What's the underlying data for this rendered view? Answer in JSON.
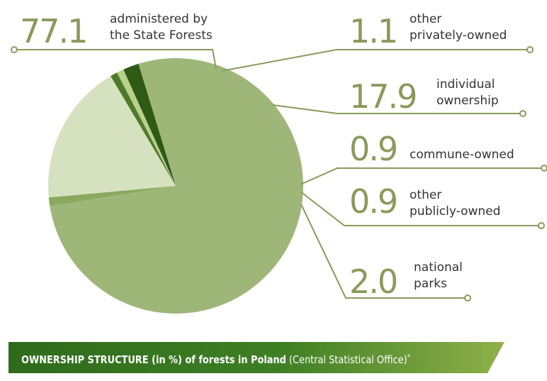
{
  "chart_data": {
    "type": "pie",
    "slices": [
      {
        "value": "77.1",
        "label_lines": [
          "administered by",
          "the State Forests"
        ],
        "color": "#9eb779"
      },
      {
        "value": "1.1",
        "label_lines": [
          "other",
          "privately-owned"
        ],
        "color": "#89a95e"
      },
      {
        "value": "17.9",
        "label_lines": [
          "individual",
          "ownership"
        ],
        "color": "#d6e2bf"
      },
      {
        "value": "0.9",
        "label_lines": [
          "commune-owned"
        ],
        "color": "#4e7a2a"
      },
      {
        "value": "0.9",
        "label_lines": [
          "other",
          "publicly-owned"
        ],
        "color": "#b8d08a"
      },
      {
        "value": "2.0",
        "label_lines": [
          "national",
          "parks"
        ],
        "color": "#2f5a16"
      }
    ]
  },
  "footer": {
    "bold": "OWNERSHIP STRUCTURE (in %) of forests in Poland",
    "normal": " (Central Statistical Office)",
    "mark": "*"
  },
  "colors": {
    "leader": "#8a9a5b",
    "footer_dark": "#2e6b1c",
    "footer_light": "#8fb04a"
  }
}
